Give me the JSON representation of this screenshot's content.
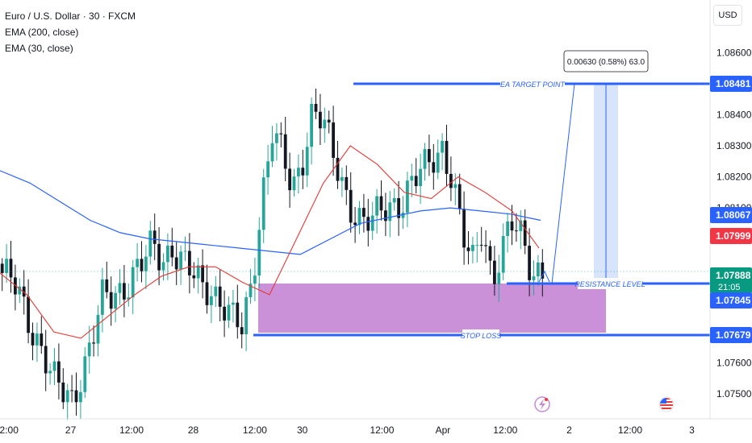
{
  "legend": {
    "title": "Euro / U.S. Dollar · 30 · FXCM",
    "ema200": "EMA (200, close)",
    "ema30": "EMA (30, close)"
  },
  "currency_button": "USD",
  "colors": {
    "up": "#26a69a",
    "down": "#131722",
    "ema200": "#2962ff",
    "ema30": "#e53935",
    "line_blue": "#2962ff",
    "zone": "#c78ad6",
    "price_tag_green": "#089981"
  },
  "chart_data": {
    "type": "candlestick",
    "ylim": [
      1.0742,
      1.0877
    ],
    "y_ticks": [
      "1.08600",
      "1.08400",
      "1.08300",
      "1.08200",
      "1.08100",
      "1.07600",
      "1.07500"
    ],
    "y_tick_values": [
      1.086,
      1.084,
      1.083,
      1.082,
      1.081,
      1.076,
      1.075
    ],
    "x_ticks": [
      "2:00",
      "27",
      "12:00",
      "28",
      "12:00",
      "30",
      "12:00",
      "Apr",
      "12:00",
      "2",
      "12:00",
      "3"
    ],
    "price_tags": [
      {
        "label": "1.08481",
        "value": 1.08481,
        "color": "#2962ff"
      },
      {
        "label": "1.08067",
        "value": 1.08067,
        "color": "#2962ff"
      },
      {
        "label": "1.07999",
        "value": 1.07999,
        "color": "#f23645"
      },
      {
        "label": "1.07888",
        "sub": "21:05",
        "value": 1.07888,
        "color": "#089981"
      },
      {
        "label": "1.07845",
        "value": 1.07845,
        "color": "#2962ff"
      },
      {
        "label": "1.07679",
        "value": 1.07679,
        "color": "#2962ff"
      }
    ],
    "levels": [
      {
        "name": "EA TARGET POINT",
        "value": 1.08481
      },
      {
        "name": "RESISTANCE LEVEL",
        "value": 1.07845
      },
      {
        "name": "STOP LOSS",
        "value": 1.07679
      }
    ],
    "measure_label": "0.00630 (0.58%) 63.0",
    "ema200_values": [
      1.0822,
      1.0818,
      1.0812,
      1.0806,
      1.0802,
      1.08,
      1.0799,
      1.0798,
      1.0797,
      1.0796,
      1.0795,
      1.08,
      1.0805,
      1.0807,
      1.0809,
      1.081,
      1.0809,
      1.0808,
      1.0806
    ],
    "ema30_values": [
      1.0789,
      1.0782,
      1.077,
      1.0768,
      1.0775,
      1.0782,
      1.0788,
      1.0791,
      1.0791,
      1.0786,
      1.0782,
      1.08,
      1.0818,
      1.083,
      1.0824,
      1.0815,
      1.0813,
      1.082,
      1.0815,
      1.0809,
      1.0797
    ],
    "closes": [
      1.0789,
      1.0786,
      1.0779,
      1.0771,
      1.0765,
      1.0755,
      1.075,
      1.0748,
      1.0758,
      1.0768,
      1.078,
      1.0781,
      1.0784,
      1.0789,
      1.0792,
      1.0797,
      1.0793,
      1.0798,
      1.0793,
      1.0788,
      1.0784,
      1.0784,
      1.078,
      1.0774,
      1.077,
      1.0787,
      1.0815,
      1.0835,
      1.0826,
      1.0815,
      1.0826,
      1.0842,
      1.0838,
      1.0827,
      1.0818,
      1.081,
      1.0805,
      1.0805,
      1.081,
      1.0812,
      1.0812,
      1.0817,
      1.0822,
      1.0827,
      1.083,
      1.0818,
      1.08,
      1.0793,
      1.0806,
      1.0786,
      1.0795,
      1.0805,
      1.0802,
      1.079,
      1.0788
    ]
  }
}
